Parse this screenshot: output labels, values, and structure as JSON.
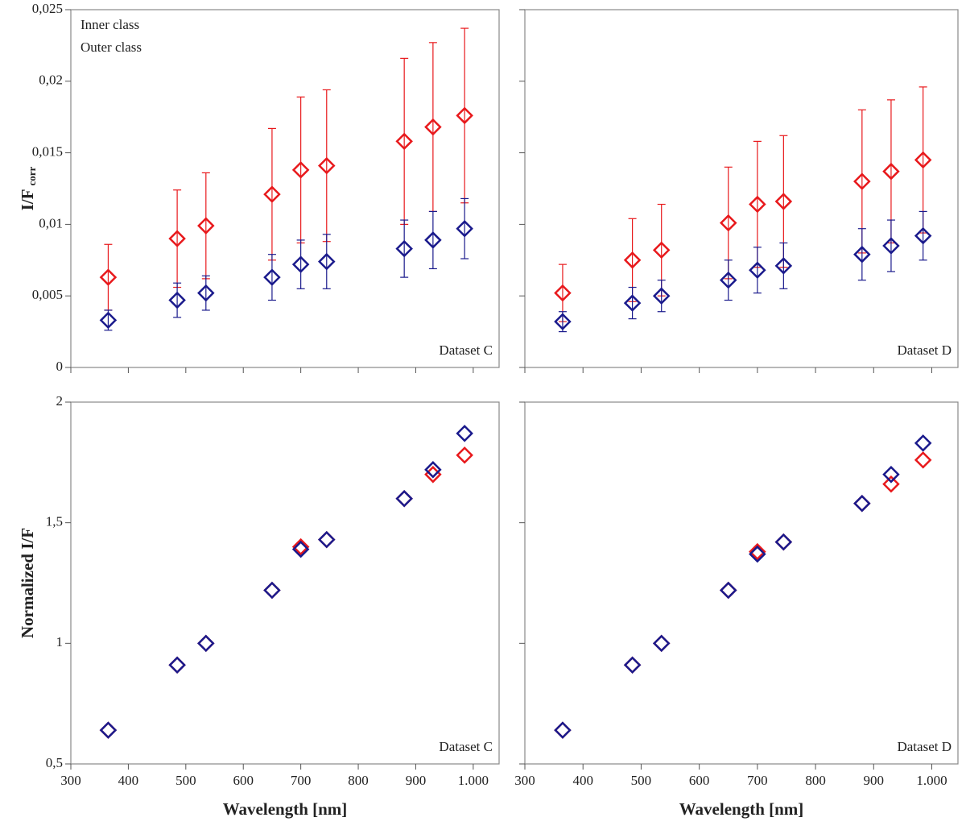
{
  "chart_data": [
    {
      "type": "scatter",
      "legend": true,
      "xtick_labels": false,
      "ytick_labels": true,
      "ylabel": "I/F",
      "ylabel_sub": "corr",
      "annotation": "Dataset C",
      "x": [
        365,
        485,
        535,
        650,
        700,
        745,
        880,
        930,
        985
      ],
      "xlim": [
        300,
        1045
      ],
      "xticks": [
        300,
        400,
        500,
        600,
        700,
        800,
        900,
        {
          "value": 1000,
          "label": "1.000"
        }
      ],
      "ylim": [
        0,
        0.025
      ],
      "yticks": [
        0,
        {
          "value": 0.005,
          "label": "0,005"
        },
        {
          "value": 0.01,
          "label": "0,01"
        },
        {
          "value": 0.015,
          "label": "0,015"
        },
        {
          "value": 0.02,
          "label": "0,02"
        },
        {
          "value": 0.025,
          "label": "0,025"
        }
      ],
      "series": [
        {
          "name": "Inner class",
          "color": "#e8191c",
          "values": [
            0.0063,
            0.009,
            0.0099,
            0.0121,
            0.0138,
            0.0141,
            0.0158,
            0.0168,
            0.0176
          ],
          "errors": [
            0.0023,
            0.0034,
            0.0037,
            0.0046,
            0.0051,
            0.0053,
            0.0058,
            0.0059,
            0.0061
          ]
        },
        {
          "name": "Outer class",
          "color": "#1a1a8c",
          "values": [
            0.0033,
            0.0047,
            0.0052,
            0.0063,
            0.0072,
            0.0074,
            0.0083,
            0.0089,
            0.0097
          ],
          "errors": [
            0.0007,
            0.0012,
            0.0012,
            0.0016,
            0.0017,
            0.0019,
            0.002,
            0.002,
            0.0021
          ]
        }
      ]
    },
    {
      "type": "scatter",
      "legend": false,
      "xtick_labels": false,
      "ytick_labels": false,
      "annotation": "Dataset D",
      "x": [
        365,
        485,
        535,
        650,
        700,
        745,
        880,
        930,
        985
      ],
      "xlim": [
        300,
        1045
      ],
      "xticks": [
        300,
        400,
        500,
        600,
        700,
        800,
        900,
        {
          "value": 1000,
          "label": "1.000"
        }
      ],
      "ylim": [
        0,
        0.025
      ],
      "yticks": [
        0,
        {
          "value": 0.005,
          "label": "0,005"
        },
        {
          "value": 0.01,
          "label": "0,01"
        },
        {
          "value": 0.015,
          "label": "0,015"
        },
        {
          "value": 0.02,
          "label": "0,02"
        },
        {
          "value": 0.025,
          "label": "0,025"
        }
      ],
      "series": [
        {
          "name": "Inner class",
          "color": "#e8191c",
          "values": [
            0.0052,
            0.0075,
            0.0082,
            0.0101,
            0.0114,
            0.0116,
            0.013,
            0.0137,
            0.0145
          ],
          "errors": [
            0.002,
            0.0029,
            0.0032,
            0.0039,
            0.0044,
            0.0046,
            0.005,
            0.005,
            0.0051
          ]
        },
        {
          "name": "Outer class",
          "color": "#1a1a8c",
          "values": [
            0.0032,
            0.0045,
            0.005,
            0.0061,
            0.0068,
            0.0071,
            0.0079,
            0.0085,
            0.0092
          ],
          "errors": [
            0.0007,
            0.0011,
            0.0011,
            0.0014,
            0.0016,
            0.0016,
            0.0018,
            0.0018,
            0.0017
          ]
        }
      ]
    },
    {
      "type": "scatter",
      "legend": false,
      "xtick_labels": true,
      "ytick_labels": true,
      "ylabel": "Normalized I/F",
      "xlabel": "Wavelength [nm]",
      "annotation": "Dataset C",
      "x": [
        365,
        485,
        535,
        650,
        700,
        745,
        880,
        930,
        985
      ],
      "xlim": [
        300,
        1045
      ],
      "xticks": [
        300,
        400,
        500,
        600,
        700,
        800,
        900,
        {
          "value": 1000,
          "label": "1.000"
        }
      ],
      "ylim": [
        0.5,
        2
      ],
      "yticks": [
        {
          "value": 0.5,
          "label": "0,5"
        },
        1,
        {
          "value": 1.5,
          "label": "1,5"
        },
        2
      ],
      "series": [
        {
          "name": "Inner class",
          "color": "#e8191c",
          "values": [
            0.64,
            0.91,
            1.0,
            1.22,
            1.4,
            1.43,
            1.6,
            1.7,
            1.78
          ]
        },
        {
          "name": "Outer class",
          "color": "#1a1a8c",
          "values": [
            0.64,
            0.91,
            1.0,
            1.22,
            1.39,
            1.43,
            1.6,
            1.72,
            1.87
          ]
        }
      ]
    },
    {
      "type": "scatter",
      "legend": false,
      "xtick_labels": true,
      "ytick_labels": false,
      "xlabel": "Wavelength [nm]",
      "annotation": "Dataset D",
      "x": [
        365,
        485,
        535,
        650,
        700,
        745,
        880,
        930,
        985
      ],
      "xlim": [
        300,
        1045
      ],
      "xticks": [
        300,
        400,
        500,
        600,
        700,
        800,
        900,
        {
          "value": 1000,
          "label": "1.000"
        }
      ],
      "ylim": [
        0.5,
        2
      ],
      "yticks": [
        {
          "value": 0.5,
          "label": "0,5"
        },
        1,
        {
          "value": 1.5,
          "label": "1,5"
        },
        2
      ],
      "series": [
        {
          "name": "Inner class",
          "color": "#e8191c",
          "values": [
            0.64,
            0.91,
            1.0,
            1.22,
            1.38,
            1.42,
            1.58,
            1.66,
            1.76
          ]
        },
        {
          "name": "Outer class",
          "color": "#1a1a8c",
          "values": [
            0.64,
            0.91,
            1.0,
            1.22,
            1.37,
            1.42,
            1.58,
            1.7,
            1.83
          ]
        }
      ]
    }
  ]
}
